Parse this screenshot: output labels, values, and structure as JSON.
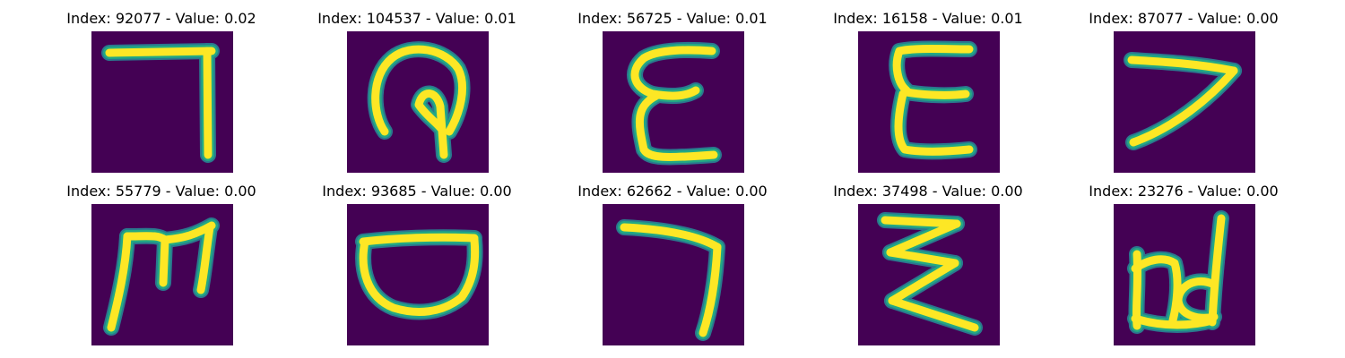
{
  "colors": {
    "background": "#440154",
    "stroke_core": "#fde725",
    "stroke_edge": "#22a884",
    "stroke_halo": "#2a788e"
  },
  "panels": [
    {
      "title": "Index: 92077 - Value: 0.02",
      "glyph": "seven-like-corner"
    },
    {
      "title": "Index: 104537 - Value: 0.01",
      "glyph": "loop-with-stem"
    },
    {
      "title": "Index: 56725 - Value: 0.01",
      "glyph": "epsilon-like"
    },
    {
      "title": "Index: 16158 - Value: 0.01",
      "glyph": "e-like"
    },
    {
      "title": "Index: 87077 - Value: 0.00",
      "glyph": "seven-like-slanted"
    },
    {
      "title": "Index: 55779 - Value: 0.00",
      "glyph": "m-like"
    },
    {
      "title": "Index: 93685 - Value: 0.00",
      "glyph": "bowl-like"
    },
    {
      "title": "Index: 62662 - Value: 0.00",
      "glyph": "seven-like-hook"
    },
    {
      "title": "Index: 37498 - Value: 0.00",
      "glyph": "zigzag-like"
    },
    {
      "title": "Index: 23276 - Value: 0.00",
      "glyph": "b-d-like"
    }
  ]
}
